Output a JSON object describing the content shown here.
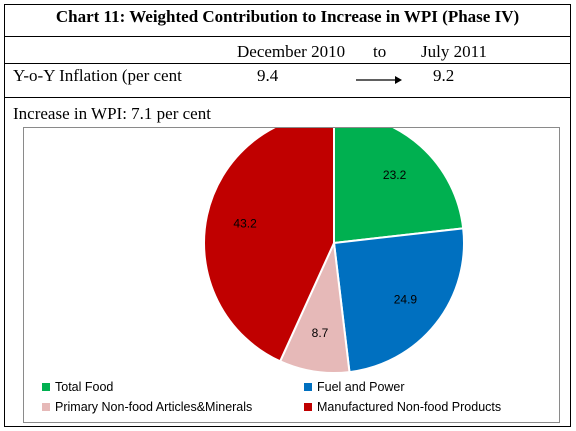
{
  "header": {
    "title": "Chart 11: Weighted Contribution to Increase in WPI (Phase IV)",
    "period_from": "December 2010",
    "period_to_word": "to",
    "period_to": "July 2011"
  },
  "inflation_row": {
    "label": "Y-o-Y Inflation (per cent",
    "value_from": "9.4",
    "value_to": "9.2",
    "arrow_icon": "right-arrow-icon"
  },
  "increase_text": "Increase in WPI: 7.1 per cent",
  "chart_data": {
    "type": "pie",
    "slices": [
      {
        "name": "Total Food",
        "value": 23.2,
        "label": "23.2",
        "color": "#00b050"
      },
      {
        "name": "Fuel and Power",
        "value": 24.9,
        "label": "24.9",
        "color": "#0070c0"
      },
      {
        "name": "Primary Non-food Articles&Minerals",
        "value": 8.7,
        "label": "8.7",
        "color": "#e6b9b8"
      },
      {
        "name": "Manufactured Non-food Products",
        "value": 43.2,
        "label": "43.2",
        "color": "#c00000"
      }
    ],
    "legend_position": "bottom"
  }
}
